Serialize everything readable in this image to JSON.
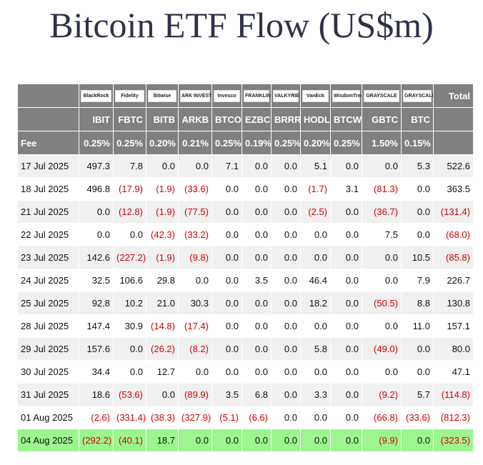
{
  "header": {
    "title": "Bitcoin ETF Flow (US$m)"
  },
  "table": {
    "logos": [
      "BlackRock",
      "Fidelity",
      "Bitwise",
      "ARK INVEST",
      "Invesco",
      "FRANKLIN TEMPLETON",
      "VALKYRIE",
      "VanEck",
      "WisdomTree",
      "GRAYSCALE",
      "GRAYSCALE"
    ],
    "total_label": "Total",
    "tickers": [
      "IBIT",
      "FBTC",
      "BITB",
      "ARKB",
      "BTCO",
      "EZBC",
      "BRRR",
      "HODL",
      "BTCW",
      "GBTC",
      "BTC"
    ],
    "fee_label": "Fee",
    "fees": [
      "0.25%",
      "0.25%",
      "0.20%",
      "0.21%",
      "0.25%",
      "0.19%",
      "0.25%",
      "0.20%",
      "0.25%",
      "1.50%",
      "0.15%"
    ],
    "rows": [
      [
        "17 Jul 2025",
        "497.3",
        "7.8",
        "0.0",
        "0.0",
        "7.1",
        "0.0",
        "0.0",
        "5.1",
        "0.0",
        "0.0",
        "5.3",
        "522.6"
      ],
      [
        "18 Jul 2025",
        "496.8",
        "(17.9)",
        "(1.9)",
        "(33.6)",
        "0.0",
        "0.0",
        "0.0",
        "(1.7)",
        "3.1",
        "(81.3)",
        "0.0",
        "363.5"
      ],
      [
        "21 Jul 2025",
        "0.0",
        "(12.8)",
        "(1.9)",
        "(77.5)",
        "0.0",
        "0.0",
        "0.0",
        "(2.5)",
        "0.0",
        "(36.7)",
        "0.0",
        "(131.4)"
      ],
      [
        "22 Jul 2025",
        "0.0",
        "0.0",
        "(42.3)",
        "(33.2)",
        "0.0",
        "0.0",
        "0.0",
        "0.0",
        "0.0",
        "7.5",
        "0.0",
        "(68.0)"
      ],
      [
        "23 Jul 2025",
        "142.6",
        "(227.2)",
        "(1.9)",
        "(9.8)",
        "0.0",
        "0.0",
        "0.0",
        "0.0",
        "0.0",
        "0.0",
        "10.5",
        "(85.8)"
      ],
      [
        "24 Jul 2025",
        "32.5",
        "106.6",
        "29.8",
        "0.0",
        "0.0",
        "3.5",
        "0.0",
        "46.4",
        "0.0",
        "0.0",
        "7.9",
        "226.7"
      ],
      [
        "25 Jul 2025",
        "92.8",
        "10.2",
        "21.0",
        "30.3",
        "0.0",
        "0.0",
        "0.0",
        "18.2",
        "0.0",
        "(50.5)",
        "8.8",
        "130.8"
      ],
      [
        "28 Jul 2025",
        "147.4",
        "30.9",
        "(14.8)",
        "(17.4)",
        "0.0",
        "0.0",
        "0.0",
        "0.0",
        "0.0",
        "0.0",
        "11.0",
        "157.1"
      ],
      [
        "29 Jul 2025",
        "157.6",
        "0.0",
        "(26.2)",
        "(8.2)",
        "0.0",
        "0.0",
        "0.0",
        "5.8",
        "0.0",
        "(49.0)",
        "0.0",
        "80.0"
      ],
      [
        "30 Jul 2025",
        "34.4",
        "0.0",
        "12.7",
        "0.0",
        "0.0",
        "0.0",
        "0.0",
        "0.0",
        "0.0",
        "0.0",
        "0.0",
        "47.1"
      ],
      [
        "31 Jul 2025",
        "18.6",
        "(53.6)",
        "0.0",
        "(89.9)",
        "3.5",
        "6.8",
        "0.0",
        "3.3",
        "0.0",
        "(9.2)",
        "5.7",
        "(114.8)"
      ],
      [
        "01 Aug 2025",
        "(2.6)",
        "(331.4)",
        "(38.3)",
        "(327.9)",
        "(5.1)",
        "(6.6)",
        "0.0",
        "0.0",
        "0.0",
        "(66.8)",
        "(33.6)",
        "(812.3)"
      ],
      [
        "04 Aug 2025",
        "(292.2)",
        "(40.1)",
        "18.7",
        "0.0",
        "0.0",
        "0.0",
        "0.0",
        "0.0",
        "0.0",
        "(9.9)",
        "0.0",
        "(323.5)"
      ]
    ]
  }
}
